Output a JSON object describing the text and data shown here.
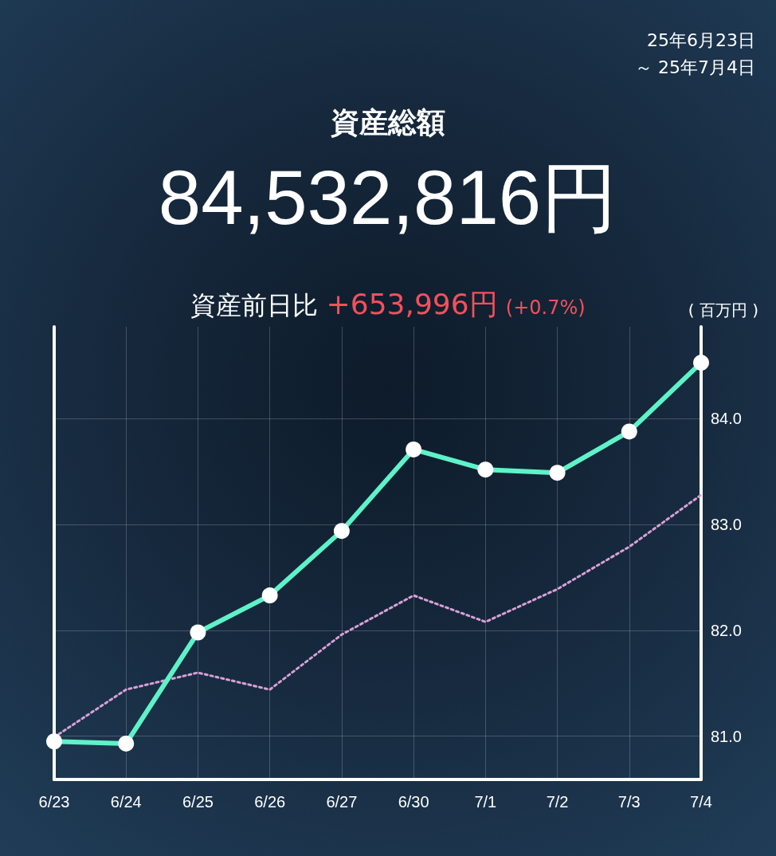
{
  "chart_data": {
    "type": "line",
    "title": "資産総額",
    "subtitle": "84,532,816円",
    "ylabel": "( 百万円 )",
    "annotations": [
      "25年6月23日",
      "～ 25年7月4日",
      "資産前日比",
      "+653,996円",
      "(+0.7%)"
    ],
    "categories": [
      "6/23",
      "6/24",
      "6/25",
      "6/26",
      "6/27",
      "6/30",
      "7/1",
      "7/2",
      "7/3",
      "7/4"
    ],
    "series": [
      {
        "color": "#5ef2c8",
        "marker": "circle",
        "line_style": "solid",
        "values": [
          80.95,
          80.93,
          81.98,
          82.33,
          82.94,
          83.71,
          83.52,
          83.49,
          83.88,
          84.53
        ]
      },
      {
        "color": "#d9a0d6",
        "marker": "none",
        "line_style": "dotted",
        "values": [
          80.99,
          81.44,
          81.6,
          81.44,
          81.96,
          82.33,
          82.08,
          82.39,
          82.79,
          83.28
        ]
      }
    ],
    "ylim": [
      80.59,
      84.87
    ],
    "yticks": [
      {
        "value": 81,
        "label": "81.0"
      },
      {
        "value": 82,
        "label": "82.0"
      },
      {
        "value": 83,
        "label": "83.0"
      },
      {
        "value": 84,
        "label": "84.0"
      }
    ],
    "grid": true
  }
}
